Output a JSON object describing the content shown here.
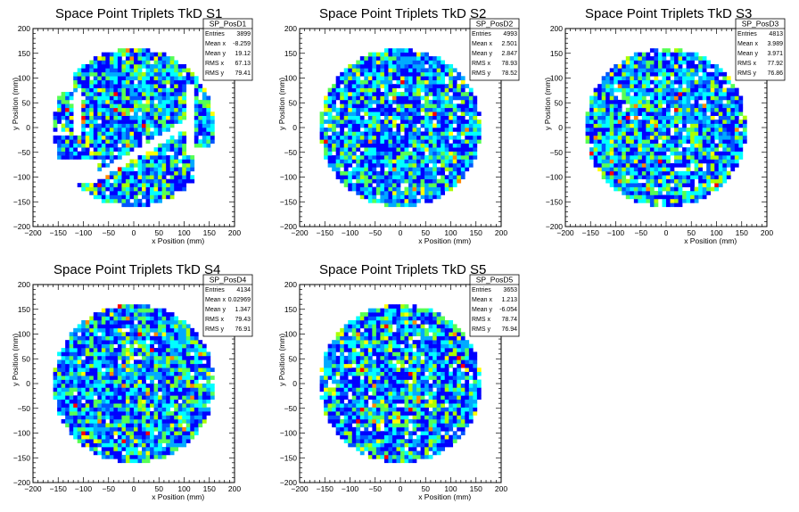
{
  "chart_data": [
    {
      "type": "heatmap",
      "title": "Space Point Triplets TkD S1",
      "xlabel": "x Position (mm)",
      "ylabel": "y Position (mm)",
      "xlim": [
        -200,
        200
      ],
      "ylim": [
        -200,
        200
      ],
      "xticks": [
        "−200",
        "−150",
        "−100",
        "−50",
        "0",
        "50",
        "100",
        "150",
        "200"
      ],
      "yticks": [
        "−200",
        "−150",
        "−100",
        "−50",
        "0",
        "50",
        "100",
        "150",
        "200"
      ],
      "stats": {
        "name": "SP_PosD1",
        "rows": [
          {
            "label": "Entries",
            "value": "3899"
          },
          {
            "label": "Mean x",
            "value": "-8.259"
          },
          {
            "label": "Mean y",
            "value": "19.12"
          },
          {
            "label": "RMS x",
            "value": "67.13"
          },
          {
            "label": "RMS y",
            "value": "79.41"
          }
        ]
      },
      "occupancy": {
        "radius": 160,
        "bin_size": 8,
        "gaps": "partial coverage with empty bands"
      }
    },
    {
      "type": "heatmap",
      "title": "Space Point Triplets TkD S2",
      "xlabel": "x Position (mm)",
      "ylabel": "y Position (mm)",
      "xlim": [
        -200,
        200
      ],
      "ylim": [
        -200,
        200
      ],
      "xticks": [
        "−200",
        "−150",
        "−100",
        "−50",
        "0",
        "50",
        "100",
        "150",
        "200"
      ],
      "yticks": [
        "−200",
        "−150",
        "−100",
        "−50",
        "0",
        "50",
        "100",
        "150",
        "200"
      ],
      "stats": {
        "name": "SP_PosD2",
        "rows": [
          {
            "label": "Entries",
            "value": "4993"
          },
          {
            "label": "Mean x",
            "value": "2.501"
          },
          {
            "label": "Mean y",
            "value": "2.847"
          },
          {
            "label": "RMS x",
            "value": "78.93"
          },
          {
            "label": "RMS y",
            "value": "78.52"
          }
        ]
      },
      "occupancy": {
        "radius": 160,
        "bin_size": 8
      }
    },
    {
      "type": "heatmap",
      "title": "Space Point Triplets TkD S3",
      "xlabel": "x Position (mm)",
      "ylabel": "y Position (mm)",
      "xlim": [
        -200,
        200
      ],
      "ylim": [
        -200,
        200
      ],
      "xticks": [
        "−200",
        "−150",
        "−100",
        "−50",
        "0",
        "50",
        "100",
        "150",
        "200"
      ],
      "yticks": [
        "−200",
        "−150",
        "−100",
        "−50",
        "0",
        "50",
        "100",
        "150",
        "200"
      ],
      "stats": {
        "name": "SP_PosD3",
        "rows": [
          {
            "label": "Entries",
            "value": "4813"
          },
          {
            "label": "Mean x",
            "value": "3.989"
          },
          {
            "label": "Mean y",
            "value": "3.971"
          },
          {
            "label": "RMS x",
            "value": "77.92"
          },
          {
            "label": "RMS y",
            "value": "76.86"
          }
        ]
      },
      "occupancy": {
        "radius": 160,
        "bin_size": 8
      }
    },
    {
      "type": "heatmap",
      "title": "Space Point Triplets TkD S4",
      "xlabel": "x Position (mm)",
      "ylabel": "y Position (mm)",
      "xlim": [
        -200,
        200
      ],
      "ylim": [
        -200,
        200
      ],
      "xticks": [
        "−200",
        "−150",
        "−100",
        "−50",
        "0",
        "50",
        "100",
        "150",
        "200"
      ],
      "yticks": [
        "−200",
        "−150",
        "−100",
        "−50",
        "0",
        "50",
        "100",
        "150",
        "200"
      ],
      "stats": {
        "name": "SP_PosD4",
        "rows": [
          {
            "label": "Entries",
            "value": "4134"
          },
          {
            "label": "Mean x",
            "value": "0.02969"
          },
          {
            "label": "Mean y",
            "value": "1.347"
          },
          {
            "label": "RMS x",
            "value": "79.43"
          },
          {
            "label": "RMS y",
            "value": "76.91"
          }
        ]
      },
      "occupancy": {
        "radius": 160,
        "bin_size": 8
      }
    },
    {
      "type": "heatmap",
      "title": "Space Point Triplets TkD S5",
      "xlabel": "x Position (mm)",
      "ylabel": "y Position (mm)",
      "xlim": [
        -200,
        200
      ],
      "ylim": [
        -200,
        200
      ],
      "xticks": [
        "−200",
        "−150",
        "−100",
        "−50",
        "0",
        "50",
        "100",
        "150",
        "200"
      ],
      "yticks": [
        "−200",
        "−150",
        "−100",
        "−50",
        "0",
        "50",
        "100",
        "150",
        "200"
      ],
      "stats": {
        "name": "SP_PosD5",
        "rows": [
          {
            "label": "Entries",
            "value": "3653"
          },
          {
            "label": "Mean x",
            "value": "1.213"
          },
          {
            "label": "Mean y",
            "value": "-6.054"
          },
          {
            "label": "RMS x",
            "value": "78.74"
          },
          {
            "label": "RMS y",
            "value": "76.94"
          }
        ]
      },
      "occupancy": {
        "radius": 160,
        "bin_size": 8
      }
    }
  ],
  "colors": {
    "palette": [
      "#0000ff",
      "#0055ff",
      "#00aaff",
      "#00ffff",
      "#55ff55",
      "#aaff00",
      "#ffff00",
      "#ff8800",
      "#ff0000"
    ]
  }
}
